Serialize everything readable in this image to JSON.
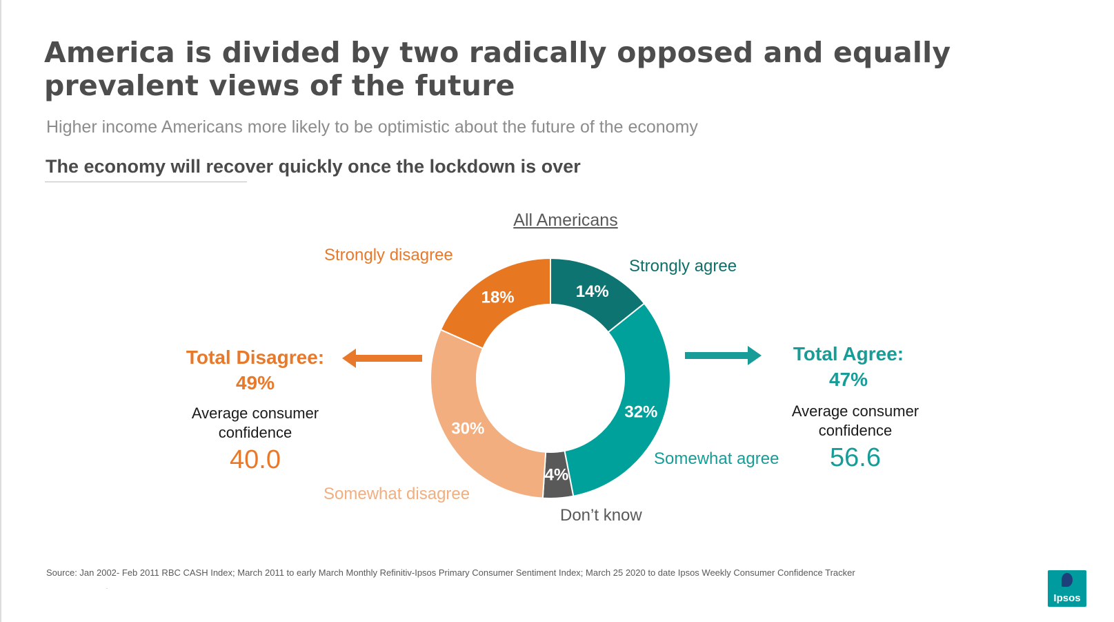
{
  "title": "America is divided by two radically opposed and equally prevalent views of the future",
  "subtitle": "Higher income Americans more likely to be optimistic about the future of the economy",
  "question": "The economy will recover quickly once the lockdown is over",
  "chart_data": {
    "type": "pie",
    "variant": "donut",
    "title": "All Americans",
    "series": [
      {
        "name": "Strongly agree",
        "value": 14,
        "label": "14%",
        "color": "#0e7471"
      },
      {
        "name": "Somewhat agree",
        "value": 32,
        "label": "32%",
        "color": "#00a19a"
      },
      {
        "name": "Don’t know",
        "value": 4,
        "label": "4%",
        "color": "#595959"
      },
      {
        "name": "Somewhat disagree",
        "value": 30,
        "label": "30%",
        "color": "#f2ae7f"
      },
      {
        "name": "Strongly disagree",
        "value": 18,
        "label": "18%",
        "color": "#e87722"
      }
    ]
  },
  "totals": {
    "disagree": {
      "label": "Total Disagree:",
      "value": "49%",
      "color": "#e8782a"
    },
    "agree": {
      "label": "Total Agree:",
      "value": "47%",
      "color": "#179c97"
    }
  },
  "confidence": {
    "label_line1": "Average consumer",
    "label_line2": "confidence",
    "disagree_value": "40.0",
    "agree_value": "56.6"
  },
  "source": "Source: Jan 2002- Feb 2011 RBC CASH Index; March 2011 to early March Monthly Refinitiv-Ipsos Primary Consumer Sentiment Index; March 25 2020 to date Ipsos Weekly Consumer Confidence Tracker",
  "footnote_mark": ".",
  "logo_text": "Ipsos",
  "logo_icon": "ipsos-logo-icon"
}
